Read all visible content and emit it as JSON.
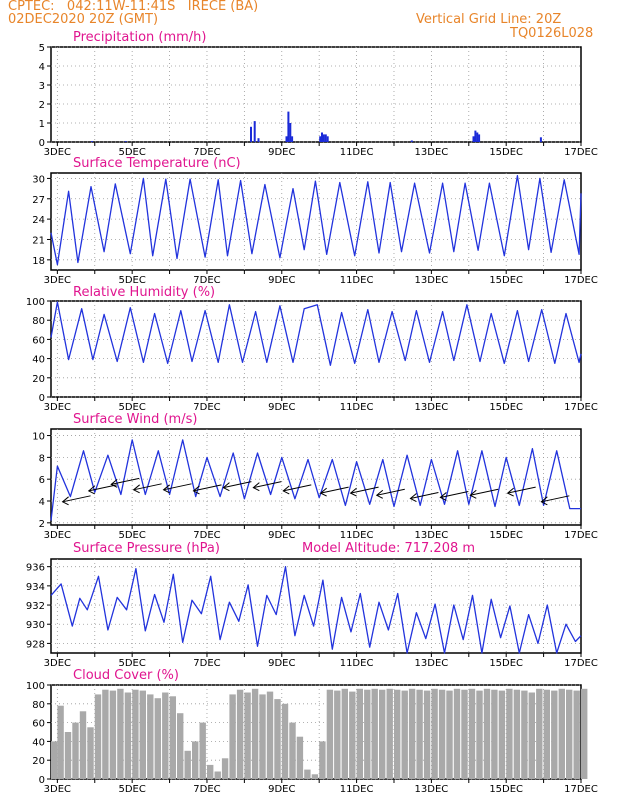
{
  "header": {
    "line1": "CPTEC:   042:11W-11:41S   IRECE (BA)",
    "line2": "02DEC2020 20Z (GMT)",
    "grid_note": "Vertical Grid Line: 20Z",
    "code": "TQ0126L028"
  },
  "colors": {
    "header": "#e8852a",
    "title": "#e0158f",
    "line": "#2233dd",
    "bar": "#1a2ad8",
    "cloud": "#a9a9a9",
    "wind": "#000000"
  },
  "chart_data": [
    {
      "type": "bar",
      "title": "Precipitation (mm/h)",
      "x_ticks": [
        "3DEC",
        "5DEC",
        "7DEC",
        "9DEC",
        "11DEC",
        "13DEC",
        "15DEC",
        "17DEC"
      ],
      "xlim_days": [
        2.83,
        17.0
      ],
      "ylim": [
        0,
        5
      ],
      "y_ticks": [
        0,
        1,
        2,
        3,
        4,
        5
      ],
      "grid": "dotted",
      "series": [
        {
          "x_days": [
            8.15,
            8.25,
            8.35,
            9.1,
            9.15,
            9.2,
            9.25,
            10.0,
            10.05,
            10.1,
            10.15,
            10.2,
            14.1,
            14.15,
            14.2,
            14.25,
            15.9,
            12.45,
            3.9,
            4.8
          ],
          "values": [
            0.8,
            1.1,
            0.2,
            0.3,
            1.6,
            1.0,
            0.3,
            0.3,
            0.5,
            0.4,
            0.4,
            0.3,
            0.3,
            0.6,
            0.5,
            0.4,
            0.25,
            0.08,
            0.05,
            0.05
          ]
        }
      ]
    },
    {
      "type": "line",
      "title": "Surface Temperature (nC)",
      "x_ticks": [
        "3DEC",
        "5DEC",
        "7DEC",
        "9DEC",
        "11DEC",
        "13DEC",
        "15DEC",
        "17DEC"
      ],
      "ylim": [
        16.5,
        30.8
      ],
      "y_ticks": [
        18,
        21,
        24,
        27,
        30
      ],
      "grid": "dotted",
      "series": [
        {
          "x_days": [
            2.83,
            3.0,
            3.3,
            3.55,
            3.9,
            4.25,
            4.55,
            4.95,
            5.3,
            5.55,
            5.9,
            6.2,
            6.55,
            6.95,
            7.3,
            7.55,
            7.9,
            8.2,
            8.55,
            8.95,
            9.3,
            9.6,
            9.9,
            10.2,
            10.55,
            10.95,
            11.3,
            11.6,
            11.9,
            12.2,
            12.55,
            12.95,
            13.3,
            13.6,
            13.9,
            14.25,
            14.55,
            14.95,
            15.3,
            15.6,
            15.9,
            16.2,
            16.55,
            16.95,
            17.0
          ],
          "values": [
            22,
            17.3,
            28.1,
            17.6,
            28.8,
            19.2,
            29.2,
            18.9,
            30.0,
            18.6,
            29.9,
            18.2,
            29.9,
            18.4,
            29.8,
            18.6,
            29.7,
            18.9,
            29.1,
            18.3,
            28.5,
            19.5,
            29.6,
            18.8,
            29.4,
            18.6,
            29.5,
            19.0,
            29.4,
            19.2,
            29.3,
            19.0,
            29.3,
            19.2,
            29.3,
            19.4,
            29.3,
            18.6,
            30.4,
            19.5,
            30.0,
            19.1,
            29.8,
            18.8,
            27.8
          ]
        }
      ]
    },
    {
      "type": "line",
      "title": "Relative Humidity (%)",
      "x_ticks": [
        "3DEC",
        "5DEC",
        "7DEC",
        "9DEC",
        "11DEC",
        "13DEC",
        "15DEC",
        "17DEC"
      ],
      "ylim": [
        0,
        100
      ],
      "y_ticks": [
        0,
        20,
        40,
        60,
        80,
        100
      ],
      "grid": "dotted",
      "series": [
        {
          "x_days": [
            2.83,
            3.0,
            3.3,
            3.65,
            3.95,
            4.25,
            4.6,
            4.95,
            5.3,
            5.6,
            5.95,
            6.3,
            6.6,
            6.95,
            7.3,
            7.6,
            7.95,
            8.3,
            8.6,
            8.95,
            9.3,
            9.6,
            9.95,
            10.3,
            10.6,
            10.95,
            11.3,
            11.6,
            11.95,
            12.3,
            12.6,
            12.95,
            13.3,
            13.6,
            13.95,
            14.3,
            14.6,
            14.95,
            15.3,
            15.6,
            15.95,
            16.3,
            16.6,
            16.95,
            17.0
          ],
          "values": [
            62,
            99,
            39,
            92,
            39,
            86,
            37,
            93,
            36,
            87,
            35,
            90,
            37,
            90,
            36,
            96,
            36,
            89,
            36,
            95,
            36,
            92,
            96,
            33,
            88,
            35,
            91,
            36,
            89,
            38,
            90,
            36,
            89,
            38,
            96,
            37,
            87,
            35,
            90,
            37,
            91,
            35,
            87,
            36,
            45
          ]
        }
      ]
    },
    {
      "type": "line",
      "title": "Surface Wind (m/s)",
      "x_ticks": [
        "3DEC",
        "5DEC",
        "7DEC",
        "9DEC",
        "11DEC",
        "13DEC",
        "15DEC",
        "17DEC"
      ],
      "ylim": [
        1.8,
        10.6
      ],
      "y_ticks": [
        2,
        4,
        6,
        8,
        10
      ],
      "grid": "dotted",
      "series": [
        {
          "x_days": [
            2.83,
            3.0,
            3.35,
            3.7,
            4.0,
            4.35,
            4.7,
            5.0,
            5.35,
            5.7,
            6.0,
            6.35,
            6.7,
            7.0,
            7.35,
            7.7,
            8.0,
            8.35,
            8.7,
            9.0,
            9.35,
            9.7,
            10.0,
            10.35,
            10.7,
            11.0,
            11.35,
            11.7,
            12.0,
            12.35,
            12.7,
            13.0,
            13.35,
            13.7,
            14.0,
            14.35,
            14.7,
            15.0,
            15.35,
            15.7,
            16.0,
            16.35,
            16.7,
            17.0
          ],
          "values": [
            2.2,
            7.2,
            4.4,
            8.6,
            4.8,
            8.2,
            4.6,
            9.6,
            4.6,
            8.6,
            4.6,
            9.6,
            4.4,
            8.0,
            4.4,
            8.4,
            4.2,
            8.4,
            4.6,
            8.0,
            4.2,
            7.8,
            4.3,
            7.8,
            3.6,
            7.6,
            3.7,
            7.8,
            3.5,
            8.2,
            3.6,
            7.8,
            3.7,
            8.6,
            3.7,
            8.6,
            3.5,
            8.0,
            3.6,
            8.8,
            3.6,
            8.6,
            3.3,
            3.3
          ]
        }
      ],
      "wind_barbs": [
        {
          "x": 3.3,
          "y": 4.2,
          "dir": "W"
        },
        {
          "x": 4.0,
          "y": 5.2,
          "dir": "W"
        },
        {
          "x": 4.6,
          "y": 5.8,
          "dir": "W"
        },
        {
          "x": 5.2,
          "y": 5.3,
          "dir": "W"
        },
        {
          "x": 6.0,
          "y": 5.3,
          "dir": "W"
        },
        {
          "x": 6.8,
          "y": 5.2,
          "dir": "W"
        },
        {
          "x": 7.6,
          "y": 5.5,
          "dir": "W"
        },
        {
          "x": 8.4,
          "y": 5.5,
          "dir": "W"
        },
        {
          "x": 9.2,
          "y": 5.2,
          "dir": "W"
        },
        {
          "x": 10.2,
          "y": 5.0,
          "dir": "W"
        },
        {
          "x": 11.0,
          "y": 5.0,
          "dir": "W"
        },
        {
          "x": 11.7,
          "y": 4.8,
          "dir": "W"
        },
        {
          "x": 12.6,
          "y": 4.5,
          "dir": "W"
        },
        {
          "x": 13.4,
          "y": 4.6,
          "dir": "W"
        },
        {
          "x": 14.2,
          "y": 4.8,
          "dir": "W"
        },
        {
          "x": 15.2,
          "y": 5.0,
          "dir": "W"
        },
        {
          "x": 16.1,
          "y": 4.2,
          "dir": "W"
        }
      ]
    },
    {
      "type": "line",
      "title": "Surface Pressure (hPa)",
      "annotation": "Model Altitude: 717.208 m",
      "x_ticks": [
        "3DEC",
        "5DEC",
        "7DEC",
        "9DEC",
        "11DEC",
        "13DEC",
        "15DEC",
        "17DEC"
      ],
      "ylim": [
        927.0,
        936.8
      ],
      "y_ticks": [
        928,
        930,
        932,
        934,
        936
      ],
      "grid": "dotted",
      "series": [
        {
          "x_days": [
            2.83,
            3.1,
            3.4,
            3.6,
            3.8,
            4.1,
            4.35,
            4.6,
            4.85,
            5.1,
            5.35,
            5.6,
            5.85,
            6.1,
            6.35,
            6.6,
            6.85,
            7.1,
            7.35,
            7.6,
            7.85,
            8.1,
            8.35,
            8.6,
            8.85,
            9.1,
            9.35,
            9.6,
            9.85,
            10.1,
            10.35,
            10.6,
            10.85,
            11.1,
            11.35,
            11.6,
            11.85,
            12.1,
            12.35,
            12.6,
            12.85,
            13.1,
            13.35,
            13.6,
            13.85,
            14.1,
            14.35,
            14.6,
            14.85,
            15.1,
            15.35,
            15.6,
            15.85,
            16.1,
            16.35,
            16.6,
            16.85,
            17.0
          ],
          "values": [
            933.0,
            934.2,
            929.8,
            932.7,
            931.5,
            935.0,
            929.4,
            932.8,
            931.5,
            935.8,
            929.3,
            933.1,
            930.2,
            935.2,
            928.1,
            932.5,
            931.1,
            935.0,
            928.4,
            932.3,
            930.3,
            934.1,
            927.7,
            933.0,
            931.0,
            936.0,
            928.8,
            933.0,
            929.8,
            934.6,
            927.4,
            932.8,
            929.2,
            933.2,
            927.6,
            932.3,
            929.4,
            933.2,
            926.8,
            931.2,
            928.5,
            932.1,
            926.5,
            932.0,
            928.4,
            933.0,
            926.8,
            932.6,
            928.6,
            931.9,
            926.6,
            931.0,
            928.0,
            932.0,
            927.0,
            930.0,
            928.2,
            928.8
          ]
        }
      ]
    },
    {
      "type": "bar",
      "title": "Cloud Cover (%)",
      "x_ticks": [
        "3DEC",
        "5DEC",
        "7DEC",
        "9DEC",
        "11DEC",
        "13DEC",
        "15DEC",
        "17DEC"
      ],
      "ylim": [
        0,
        100
      ],
      "y_ticks": [
        0,
        20,
        40,
        60,
        80,
        100
      ],
      "grid": "dotted",
      "series": [
        {
          "x_days": [
            2.83,
            3.0,
            3.2,
            3.4,
            3.6,
            3.8,
            4.0,
            4.2,
            4.4,
            4.6,
            4.8,
            5.0,
            5.2,
            5.4,
            5.6,
            5.8,
            6.0,
            6.2,
            6.4,
            6.6,
            6.8,
            7.0,
            7.2,
            7.4,
            7.6,
            7.8,
            8.0,
            8.2,
            8.4,
            8.6,
            8.8,
            9.0,
            9.2,
            9.4,
            9.6,
            9.8,
            10.0,
            10.2,
            10.4,
            10.6,
            10.8,
            11.0,
            11.2,
            11.4,
            11.6,
            11.8,
            12.0,
            12.2,
            12.4,
            12.6,
            12.8,
            13.0,
            13.2,
            13.4,
            13.6,
            13.8,
            14.0,
            14.2,
            14.4,
            14.6,
            14.8,
            15.0,
            15.2,
            15.4,
            15.6,
            15.8,
            16.0,
            16.2,
            16.4,
            16.6,
            16.8,
            17.0
          ],
          "values": [
            40,
            78,
            50,
            60,
            72,
            55,
            90,
            95,
            94,
            96,
            92,
            95,
            94,
            90,
            86,
            92,
            88,
            70,
            30,
            40,
            60,
            15,
            8,
            22,
            90,
            95,
            92,
            96,
            90,
            93,
            85,
            80,
            60,
            45,
            10,
            5,
            40,
            95,
            94,
            96,
            93,
            96,
            95,
            96,
            95,
            96,
            95,
            94,
            96,
            95,
            94,
            96,
            95,
            94,
            96,
            95,
            96,
            94,
            96,
            95,
            94,
            96,
            95,
            94,
            92,
            96,
            95,
            94,
            96,
            95,
            94,
            96
          ]
        }
      ]
    }
  ]
}
